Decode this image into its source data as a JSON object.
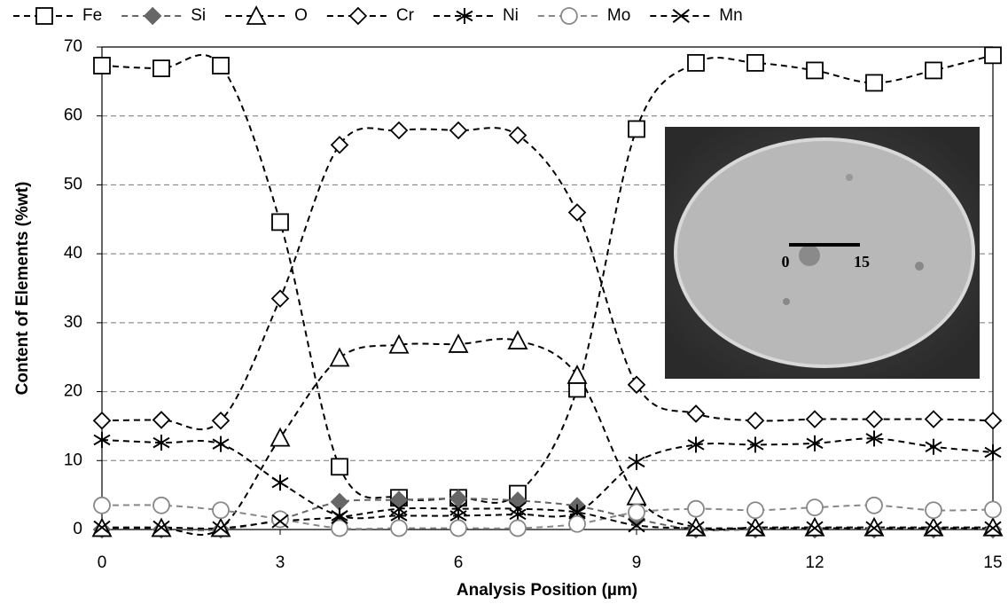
{
  "chart_data": {
    "type": "line",
    "x_label": "Analysis Position (µm)",
    "y_label": "Content of Elements (%wt)",
    "x": [
      0,
      1,
      2,
      3,
      4,
      5,
      6,
      7,
      8,
      9,
      10,
      11,
      12,
      13,
      14,
      15
    ],
    "xlim": [
      0,
      15
    ],
    "xticks": [
      0,
      3,
      6,
      9,
      12,
      15
    ],
    "ylim": [
      0,
      70
    ],
    "yticks": [
      0,
      10,
      20,
      30,
      40,
      50,
      60,
      70
    ],
    "grid": true,
    "legend": "top",
    "annotations": [
      "0",
      "15"
    ],
    "series": [
      {
        "name": "Fe",
        "color": "#000000",
        "marker": "square",
        "values": [
          67.3,
          66.9,
          67.3,
          44.6,
          9.1,
          4.6,
          4.6,
          5.2,
          20.4,
          58.1,
          67.7,
          67.7,
          66.6,
          64.8,
          66.6,
          68.8
        ]
      },
      {
        "name": "Si",
        "color": "#666666",
        "marker": "filled-diamond",
        "values": [
          0,
          0,
          0,
          1.5,
          4,
          4.3,
          4.5,
          4.2,
          3.4,
          1.5,
          0,
          0,
          0,
          0,
          0,
          0
        ]
      },
      {
        "name": "O",
        "color": "#000000",
        "marker": "triangle",
        "values": [
          0.2,
          0.2,
          0.2,
          13.3,
          24.9,
          26.8,
          26.9,
          27.4,
          22.4,
          4.8,
          0.3,
          0.3,
          0.3,
          0.3,
          0.3,
          0.3
        ]
      },
      {
        "name": "Cr",
        "color": "#000000",
        "marker": "diamond",
        "values": [
          15.8,
          15.9,
          15.8,
          33.5,
          55.8,
          57.9,
          57.9,
          57.2,
          46,
          21,
          16.8,
          15.8,
          16,
          16,
          16,
          15.8
        ]
      },
      {
        "name": "Ni",
        "color": "#000000",
        "marker": "star",
        "values": [
          13,
          12.6,
          12.4,
          6.8,
          2,
          2,
          2,
          2.2,
          2.5,
          9.8,
          12.3,
          12.3,
          12.5,
          13.2,
          12,
          11.2
        ]
      },
      {
        "name": "Mo",
        "color": "#888888",
        "marker": "circle",
        "values": [
          3.5,
          3.5,
          2.8,
          1.5,
          0.2,
          0.2,
          0.2,
          0.2,
          0.8,
          2.5,
          3,
          2.8,
          3.2,
          3.5,
          2.8,
          2.9
        ]
      },
      {
        "name": "Mn",
        "color": "#000000",
        "marker": "cross",
        "values": [
          0.3,
          0.3,
          0.2,
          1.2,
          1.8,
          3,
          3,
          3,
          2.5,
          0.6,
          0.2,
          0.2,
          0.2,
          0.2,
          0.2,
          0.2
        ]
      }
    ]
  }
}
